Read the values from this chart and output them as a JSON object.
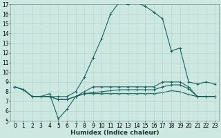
{
  "xlabel": "Humidex (Indice chaleur)",
  "bg_color": "#cce8e0",
  "line_color": "#1a6060",
  "grid_color": "#aad4cc",
  "xlim": [
    -0.5,
    23.5
  ],
  "ylim": [
    5,
    17
  ],
  "yticks": [
    5,
    6,
    7,
    8,
    9,
    10,
    11,
    12,
    13,
    14,
    15,
    16,
    17
  ],
  "xticks": [
    0,
    1,
    2,
    3,
    4,
    5,
    6,
    7,
    8,
    9,
    10,
    11,
    12,
    13,
    14,
    15,
    16,
    17,
    18,
    19,
    20,
    21,
    22,
    23
  ],
  "line1_y": [
    8.5,
    8.2,
    7.5,
    7.5,
    7.5,
    7.5,
    7.5,
    8.0,
    9.5,
    11.5,
    13.5,
    16.0,
    17.2,
    17.0,
    17.2,
    16.8,
    16.2,
    15.5,
    12.2,
    12.5,
    9.0,
    8.8,
    9.0,
    8.8
  ],
  "line2_y": [
    8.5,
    8.2,
    7.5,
    7.5,
    7.8,
    5.2,
    6.2,
    7.5,
    8.0,
    8.5,
    8.5,
    8.5,
    8.5,
    8.5,
    8.5,
    8.5,
    8.5,
    9.0,
    9.0,
    9.0,
    8.5,
    7.5,
    7.5,
    7.5
  ],
  "line3_y": [
    8.5,
    8.2,
    7.5,
    7.5,
    7.5,
    7.2,
    7.2,
    7.5,
    7.8,
    7.9,
    8.0,
    8.1,
    8.2,
    8.2,
    8.2,
    8.2,
    8.2,
    8.5,
    8.7,
    8.7,
    8.3,
    7.5,
    7.5,
    7.5
  ],
  "line4_y": [
    8.5,
    8.2,
    7.5,
    7.5,
    7.5,
    7.2,
    7.2,
    7.5,
    7.8,
    7.8,
    7.8,
    7.8,
    7.8,
    7.8,
    7.8,
    7.8,
    7.8,
    7.9,
    8.1,
    8.0,
    7.7,
    7.5,
    7.5,
    7.5
  ],
  "font_size": 5.5,
  "line_width": 0.8,
  "marker_size": 3.0
}
